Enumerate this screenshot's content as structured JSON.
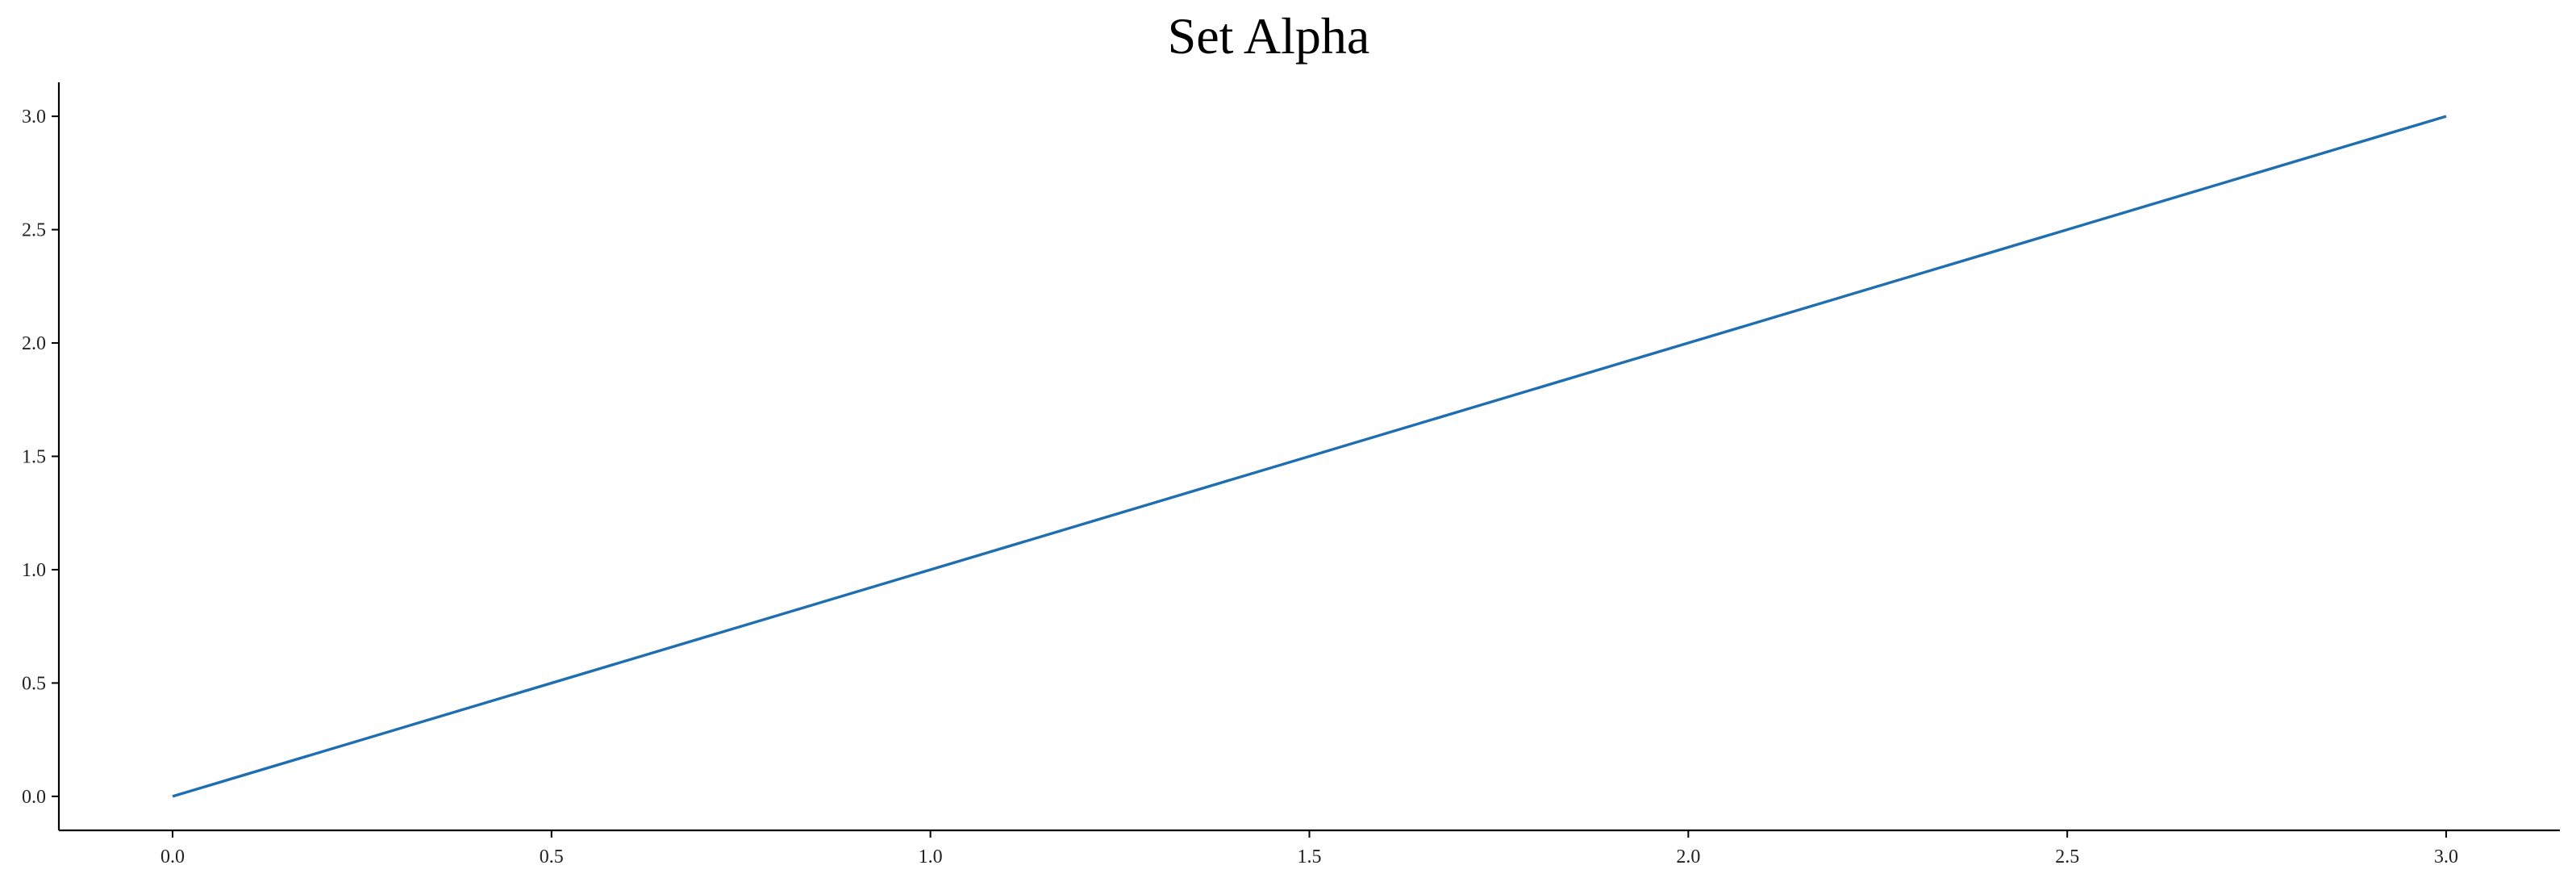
{
  "chart_data": {
    "type": "line",
    "title": "Set Alpha",
    "xlabel": "",
    "ylabel": "",
    "xlim": [
      -0.15,
      3.15
    ],
    "ylim": [
      -0.15,
      3.15
    ],
    "x_ticks": [
      0.0,
      0.5,
      1.0,
      1.5,
      2.0,
      2.5,
      3.0
    ],
    "x_tick_labels": [
      "0.0",
      "0.5",
      "1.0",
      "1.5",
      "2.0",
      "2.5",
      "3.0"
    ],
    "y_ticks": [
      0.0,
      0.5,
      1.0,
      1.5,
      2.0,
      2.5,
      3.0
    ],
    "y_tick_labels": [
      "0.0",
      "0.5",
      "1.0",
      "1.5",
      "2.0",
      "2.5",
      "3.0"
    ],
    "grid": false,
    "legend": "none",
    "series": [
      {
        "color": "#1f6fb0",
        "x": [
          0,
          1,
          2,
          3
        ],
        "y": [
          0,
          1,
          2,
          3
        ]
      }
    ]
  }
}
